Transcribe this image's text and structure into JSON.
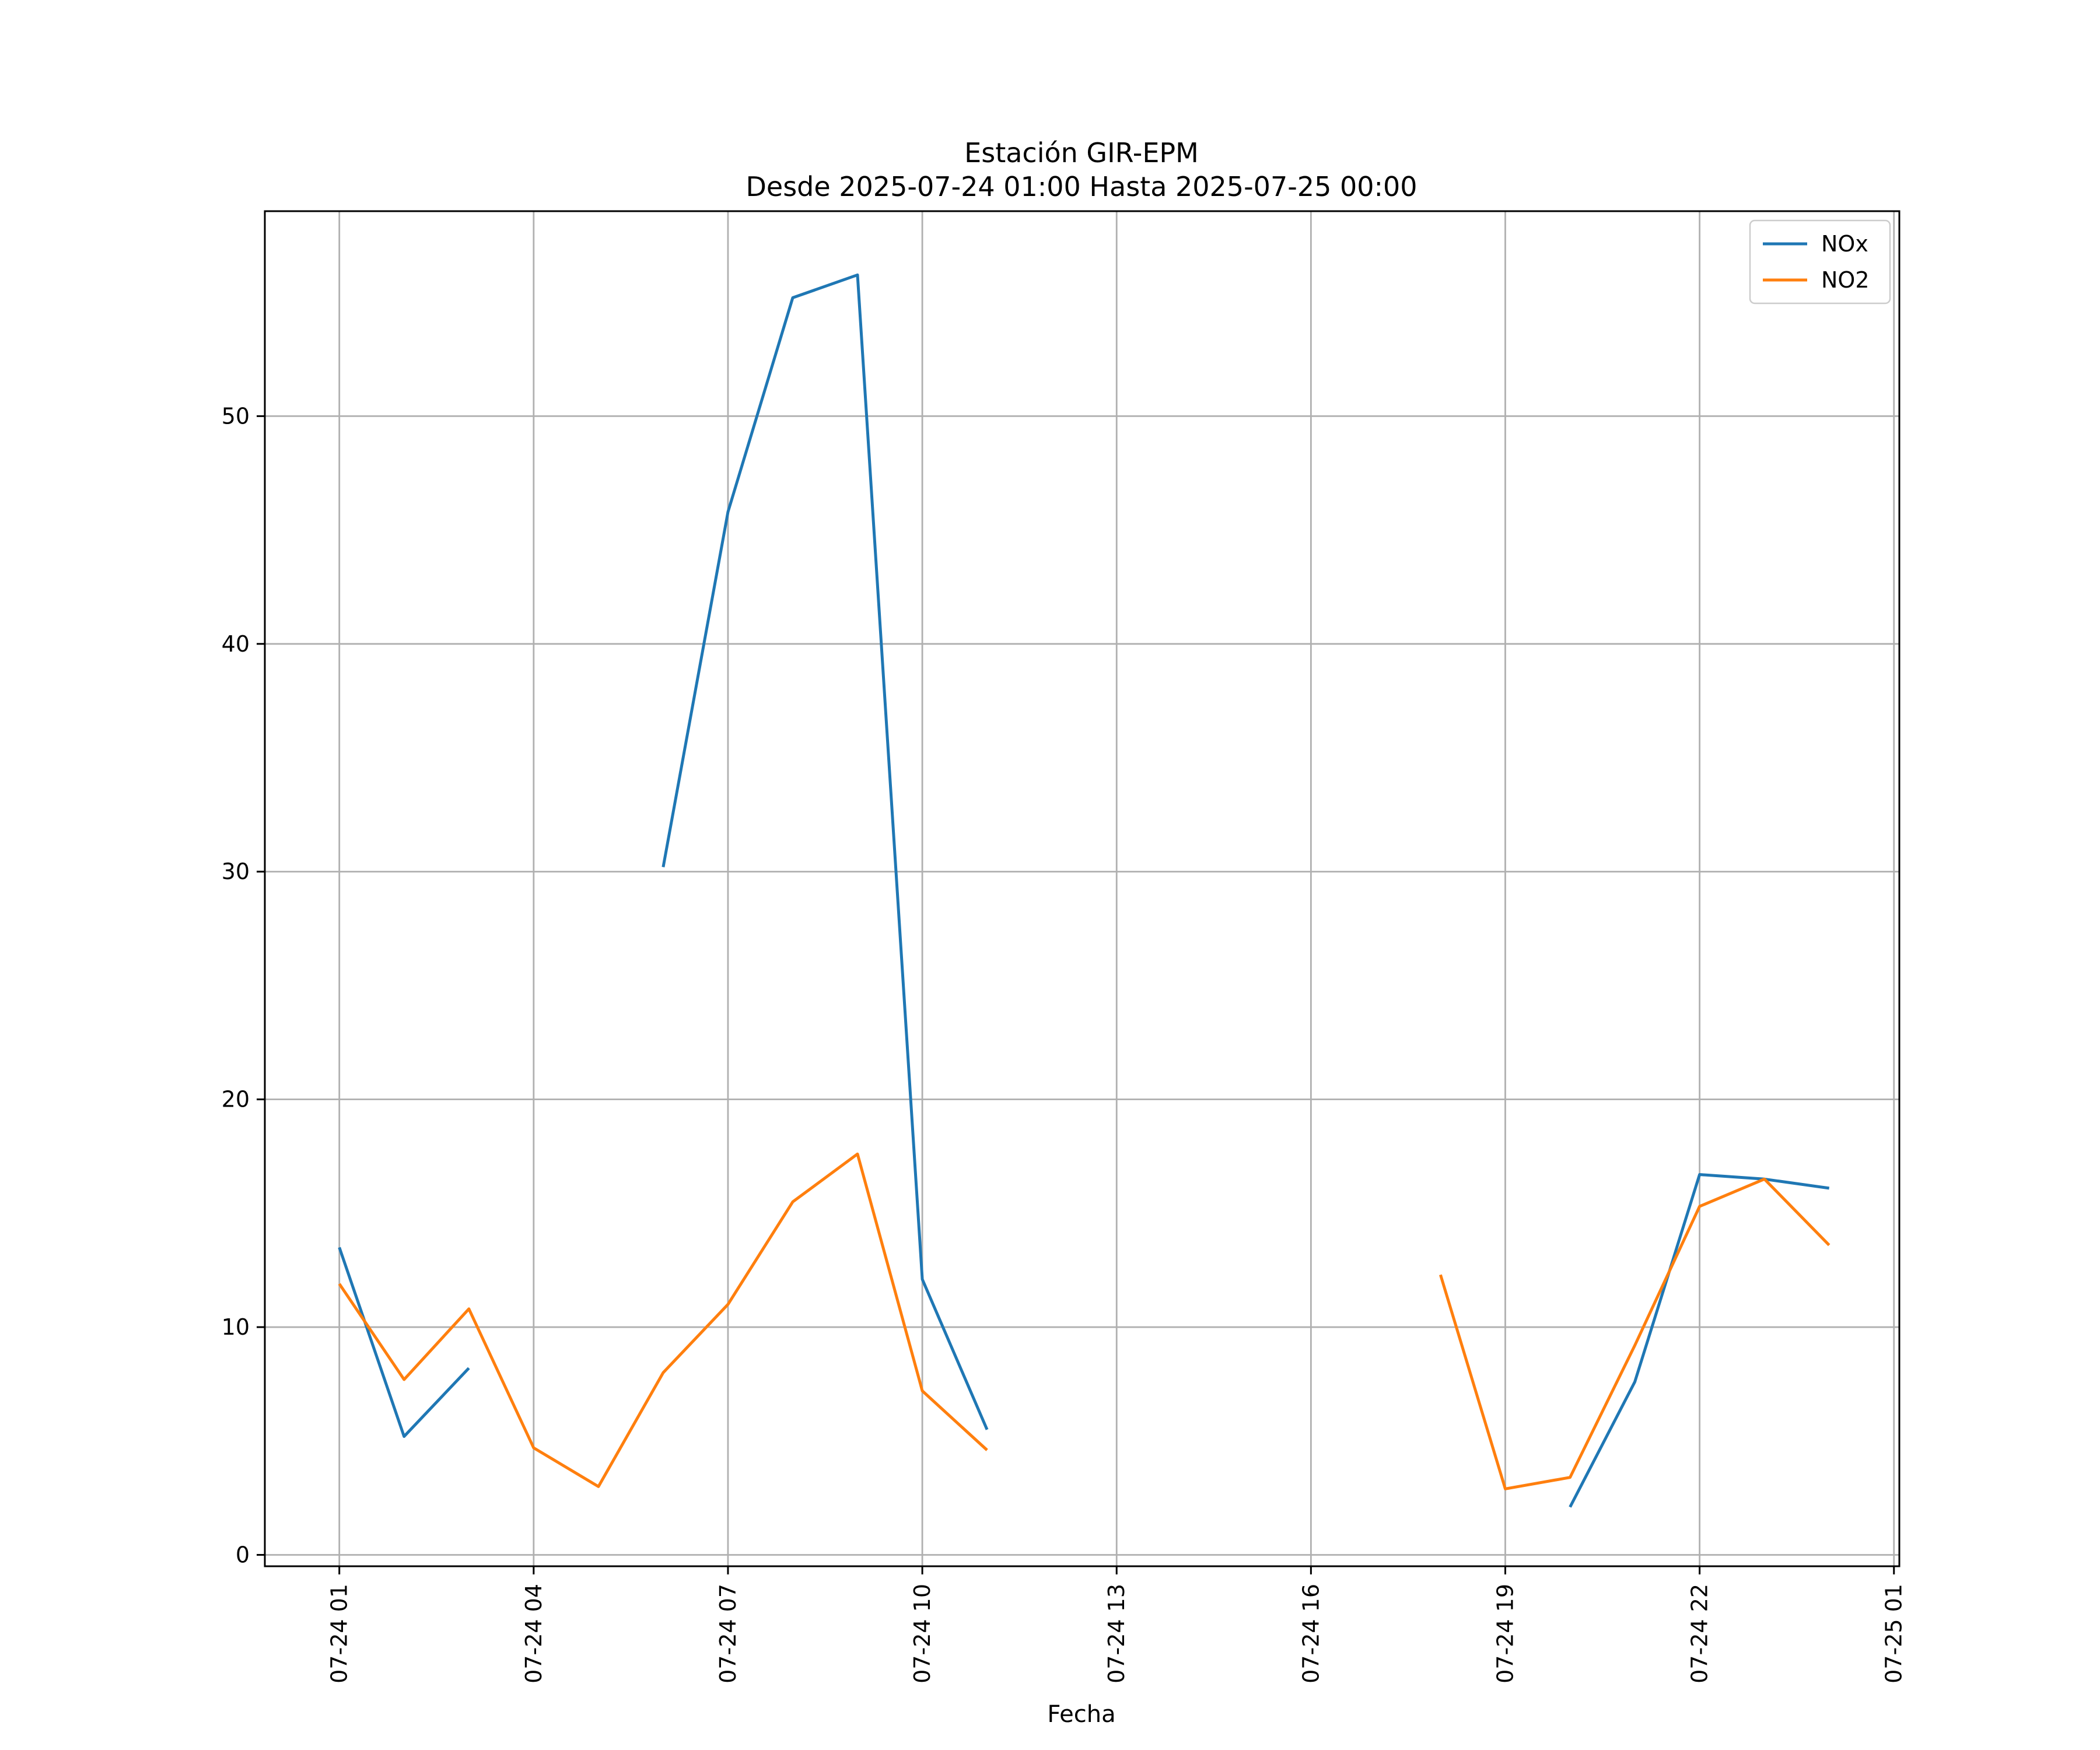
{
  "chart_data": {
    "type": "line",
    "title": "Estación GIR-EPM",
    "subtitle": "Desde 2025-07-24 01:00 Hasta 2025-07-25 00:00",
    "xlabel": "Fecha",
    "ylabel": "",
    "x": [
      "2025-07-24 01:00",
      "2025-07-24 02:00",
      "2025-07-24 03:00",
      "2025-07-24 04:00",
      "2025-07-24 05:00",
      "2025-07-24 06:00",
      "2025-07-24 07:00",
      "2025-07-24 08:00",
      "2025-07-24 09:00",
      "2025-07-24 10:00",
      "2025-07-24 11:00",
      "2025-07-24 12:00",
      "2025-07-24 13:00",
      "2025-07-24 14:00",
      "2025-07-24 15:00",
      "2025-07-24 16:00",
      "2025-07-24 17:00",
      "2025-07-24 18:00",
      "2025-07-24 19:00",
      "2025-07-24 20:00",
      "2025-07-24 21:00",
      "2025-07-24 22:00",
      "2025-07-24 23:00",
      "2025-07-25 00:00"
    ],
    "series": [
      {
        "name": "NOx",
        "color": "#1f77b4",
        "values": [
          13.5,
          5.2,
          8.2,
          null,
          null,
          30.2,
          45.8,
          55.2,
          56.2,
          12.1,
          5.5,
          null,
          null,
          null,
          null,
          null,
          null,
          null,
          null,
          2.1,
          7.6,
          16.7,
          16.5,
          16.1
        ]
      },
      {
        "name": "NO2",
        "color": "#ff7f0e",
        "values": [
          11.9,
          7.7,
          10.8,
          4.7,
          3.0,
          8.0,
          11.0,
          15.5,
          17.6,
          7.2,
          4.6,
          null,
          null,
          null,
          null,
          null,
          null,
          12.3,
          2.9,
          3.4,
          9.2,
          15.3,
          16.5,
          13.6
        ]
      }
    ],
    "xticks": [
      "07-24 01",
      "07-24 04",
      "07-24 07",
      "07-24 10",
      "07-24 13",
      "07-24 16",
      "07-24 19",
      "07-24 22",
      "07-25 01"
    ],
    "xtick_values": [
      "2025-07-24 01:00",
      "2025-07-24 04:00",
      "2025-07-24 07:00",
      "2025-07-24 10:00",
      "2025-07-24 13:00",
      "2025-07-24 16:00",
      "2025-07-24 19:00",
      "2025-07-24 22:00",
      "2025-07-25 01:00"
    ],
    "yticks": [
      0,
      10,
      20,
      30,
      40,
      50
    ],
    "xlim": [
      "2025-07-23 23:51",
      "2025-07-25 01:05"
    ],
    "ylim": [
      -0.5,
      59
    ],
    "grid": true,
    "legend_position": "top-right"
  }
}
